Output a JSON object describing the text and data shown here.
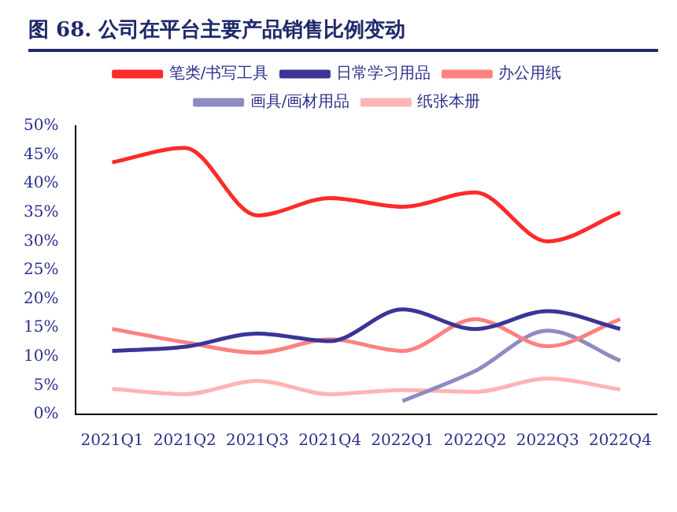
{
  "chart_data": {
    "type": "line",
    "title": "图 68. 公司在平台主要产品销售比例变动",
    "categories": [
      "2021Q1",
      "2021Q2",
      "2021Q3",
      "2021Q4",
      "2022Q1",
      "2022Q2",
      "2022Q3",
      "2022Q4"
    ],
    "series": [
      {
        "name": "笔类/书写工具",
        "color": "#ff2a2a",
        "values": [
          43.7,
          46.2,
          34.5,
          37.5,
          36,
          38.5,
          30,
          35
        ]
      },
      {
        "name": "日常学习用品",
        "color": "#3a3596",
        "values": [
          11,
          11.7,
          14,
          12.7,
          18.2,
          14.8,
          17.9,
          14.8
        ]
      },
      {
        "name": "办公用纸",
        "color": "#ff8080",
        "values": [
          14.8,
          12.5,
          10.7,
          13,
          11,
          16.5,
          11.8,
          16.5
        ]
      },
      {
        "name": "画具/画材用品",
        "color": "#8e8ac2",
        "values": [
          null,
          null,
          null,
          null,
          2.3,
          7.5,
          14.5,
          9.3
        ]
      },
      {
        "name": "纸张本册",
        "color": "#ffb4b4",
        "values": [
          4.4,
          3.5,
          5.8,
          3.5,
          4.2,
          3.9,
          6.2,
          4.3
        ]
      }
    ],
    "ylim": [
      0,
      50
    ],
    "yticks": [
      {
        "value": 0,
        "label": "0%"
      },
      {
        "value": 5,
        "label": "5%"
      },
      {
        "value": 10,
        "label": "10%"
      },
      {
        "value": 15,
        "label": "15%"
      },
      {
        "value": 20,
        "label": "20%"
      },
      {
        "value": 25,
        "label": "25%"
      },
      {
        "value": 30,
        "label": "30%"
      },
      {
        "value": 35,
        "label": "35%"
      },
      {
        "value": 40,
        "label": "40%"
      },
      {
        "value": 45,
        "label": "45%"
      },
      {
        "value": 50,
        "label": "50%"
      }
    ],
    "grid": false,
    "legend": "top",
    "marker": "none",
    "line_style": "solid"
  }
}
